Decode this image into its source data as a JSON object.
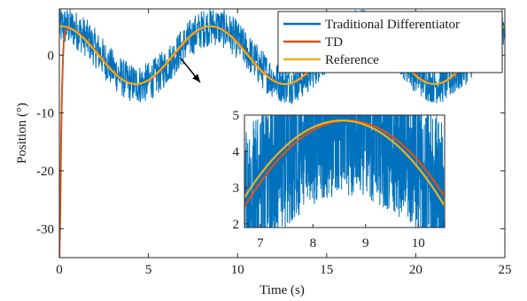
{
  "chart_data": {
    "type": "line",
    "xlabel": "Time (s)",
    "ylabel": "Position (°)",
    "xlim": [
      0,
      25
    ],
    "ylim": [
      -35,
      8
    ],
    "xticks": [
      "0",
      "5",
      "10",
      "15",
      "20",
      "25"
    ],
    "yticks": [
      "0",
      "-10",
      "-20",
      "-30"
    ],
    "grid": false,
    "legend_position": "top-right",
    "series": [
      {
        "name": "Traditional Differentiator",
        "color": "#0072BD",
        "style": "noisy band around the reference, about ±3.5° wide, with a slight lag",
        "sample_x": [
          0,
          2,
          4.5,
          8.5,
          12.5,
          16.5,
          20.5,
          24.5
        ],
        "sample_y": [
          4,
          1,
          -5,
          5,
          -5,
          5,
          -5,
          4
        ]
      },
      {
        "name": "TD",
        "color": "#D95319",
        "x": [
          0,
          0.05,
          0.1,
          0.15,
          0.2,
          0.25,
          0.3,
          0.4,
          0.5,
          1.0,
          2.0,
          4.7,
          8.9,
          13.0,
          17.2,
          21.4,
          25.0
        ],
        "y": [
          -35,
          -28,
          -14,
          -6,
          -1,
          2.5,
          3.8,
          4.5,
          4.95,
          4.85,
          3.9,
          -4.9,
          4.9,
          -4.9,
          4.9,
          -4.9,
          4.0
        ]
      },
      {
        "name": "Reference",
        "color": "#EDB120",
        "function": "5 * sin(0.75 * t + 1.5)",
        "x": [
          0,
          0.5,
          2.0,
          4.2,
          8.4,
          12.6,
          16.8,
          21.0,
          25.0
        ],
        "y": [
          4.99,
          4.99,
          3.9,
          -4.99,
          4.99,
          -4.99,
          4.99,
          -4.99,
          4.47
        ]
      }
    ],
    "inset": {
      "xlim": [
        6.7,
        10.5
      ],
      "ylim": [
        1.9,
        5
      ],
      "xticks": [
        "7",
        "8",
        "9",
        "10"
      ],
      "yticks": [
        "5",
        "4",
        "3",
        "2"
      ],
      "peak_x": 8.6,
      "peak_y": 4.85
    },
    "annotation": {
      "type": "arrow",
      "from": [
        6.8,
        -0.5
      ],
      "to": [
        7.9,
        -4.7
      ]
    }
  }
}
